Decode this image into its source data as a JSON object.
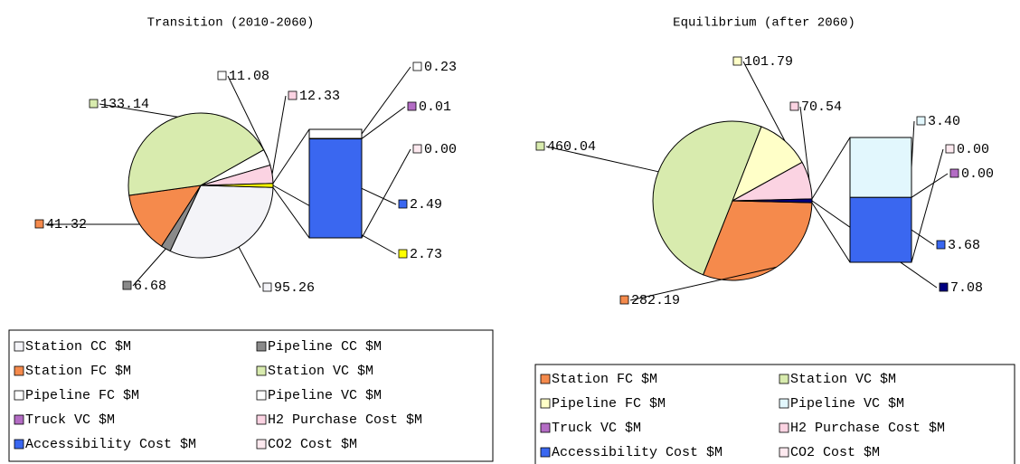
{
  "chart_data": [
    {
      "type": "pie",
      "title": "Transition (2010-2060)",
      "categories": [
        "Station CC $M",
        "Pipeline CC $M",
        "Station FC $M",
        "Station VC $M",
        "Pipeline FC $M",
        "Pipeline VC $M",
        "Truck VC $M",
        "H2 Purchase Cost $M",
        "Accessibility Cost $M",
        "CO2 Cost $M"
      ],
      "values": [
        95.26,
        6.68,
        41.32,
        133.14,
        11.08,
        0.23,
        0.01,
        12.33,
        2.49,
        0
      ],
      "value_labels": [
        "95.26",
        "6.68",
        "41.32",
        "133.14",
        "11.08",
        "0.23",
        "0.01",
        "12.33",
        "2.49",
        "0.00"
      ],
      "colors": [
        "#f4f4f8",
        "#8a8a8a",
        "#f58a4c",
        "#d8ebae",
        "#ffffff",
        "#ffffff",
        "#b36cc4",
        "#fbd3e2",
        "#3a67f0",
        "#fde9ef"
      ],
      "in_bar": [
        false,
        false,
        false,
        false,
        false,
        true,
        true,
        false,
        true,
        true
      ],
      "other": {
        "value": 2.73,
        "value_label": "2.73",
        "color": "#ffff00"
      }
    },
    {
      "type": "pie",
      "title": "Equilibrium (after 2060)",
      "categories": [
        "Station FC $M",
        "Station VC $M",
        "Pipeline FC $M",
        "Pipeline VC $M",
        "Truck VC $M",
        "H2 Purchase Cost $M",
        "Accessibility Cost $M",
        "CO2 Cost $M"
      ],
      "values": [
        282.19,
        460.04,
        101.79,
        3.4,
        0,
        70.54,
        3.68,
        0
      ],
      "value_labels": [
        "282.19",
        "460.04",
        "101.79",
        "3.40",
        "0.00",
        "70.54",
        "3.68",
        "0.00"
      ],
      "colors": [
        "#f58a4c",
        "#d8ebae",
        "#ffffc8",
        "#e2f7fd",
        "#b36cc4",
        "#fbd3e2",
        "#3a67f0",
        "#fde9ef"
      ],
      "in_bar": [
        false,
        false,
        false,
        true,
        true,
        false,
        true,
        true
      ],
      "other": {
        "value": 7.08,
        "value_label": "7.08",
        "color": "#000080"
      }
    }
  ]
}
